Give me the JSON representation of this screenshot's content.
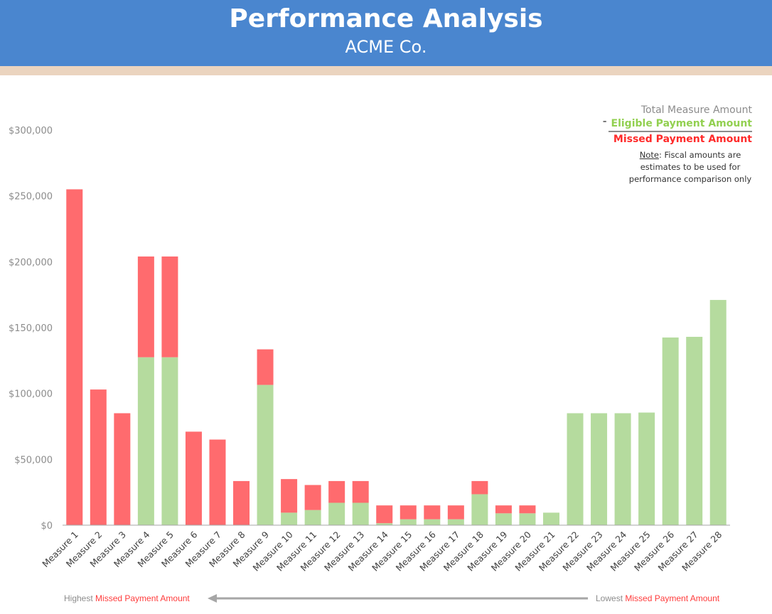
{
  "header": {
    "title": "Performance Analysis",
    "subtitle": "ACME Co."
  },
  "legend": {
    "total": "Total Measure Amount",
    "minus": "-",
    "eligible": "Eligible Payment Amount",
    "missed": "Missed Payment Amount",
    "note_label": "Note",
    "note_text_1": ": Fiscal amounts are",
    "note_text_2": "estimates to be used for",
    "note_text_3": "performance comparison only"
  },
  "footer": {
    "left_prefix": "Highest ",
    "left_highlight": "Missed Payment Amount",
    "right_prefix": "Lowest ",
    "right_highlight": "Missed Payment Amount"
  },
  "colors": {
    "missed": "#ff6b6e",
    "eligible": "#b5db9e",
    "axis_text": "#8c8c8c"
  },
  "chart_data": {
    "type": "bar",
    "stacked": true,
    "title": "",
    "xlabel": "",
    "ylabel": "",
    "ylim": [
      0,
      300000
    ],
    "yticks": [
      0,
      50000,
      100000,
      150000,
      200000,
      250000,
      300000
    ],
    "ytick_labels": [
      "$0",
      "$50,000",
      "$100,000",
      "$150,000",
      "$200,000",
      "$250,000",
      "$300,000"
    ],
    "categories": [
      "Measure 1",
      "Measure 2",
      "Measure 3",
      "Measure 4",
      "Measure 5",
      "Measure 6",
      "Measure 7",
      "Measure 8",
      "Measure 9",
      "Measure 10",
      "Measure 11",
      "Measure 12",
      "Measure 13",
      "Measure 14",
      "Measure 15",
      "Measure 16",
      "Measure 17",
      "Measure 18",
      "Measure 19",
      "Measure 20",
      "Measure 21",
      "Measure 22",
      "Measure 23",
      "Measure 24",
      "Measure 25",
      "Measure 26",
      "Measure 27",
      "Measure 28"
    ],
    "series": [
      {
        "name": "Eligible Payment Amount",
        "values": [
          0,
          0,
          0,
          127500,
          127500,
          0,
          0,
          0,
          106500,
          9500,
          11500,
          17000,
          17000,
          1500,
          4500,
          4500,
          4500,
          23500,
          9000,
          9000,
          9500,
          85000,
          85000,
          85000,
          85500,
          142500,
          143000,
          171000
        ]
      },
      {
        "name": "Missed Payment Amount",
        "values": [
          255000,
          103000,
          85000,
          76500,
          76500,
          71000,
          65000,
          33500,
          27000,
          25500,
          19000,
          16500,
          16500,
          13500,
          10500,
          10500,
          10500,
          10000,
          6000,
          6000,
          0,
          0,
          0,
          0,
          0,
          0,
          0,
          0
        ]
      }
    ]
  }
}
